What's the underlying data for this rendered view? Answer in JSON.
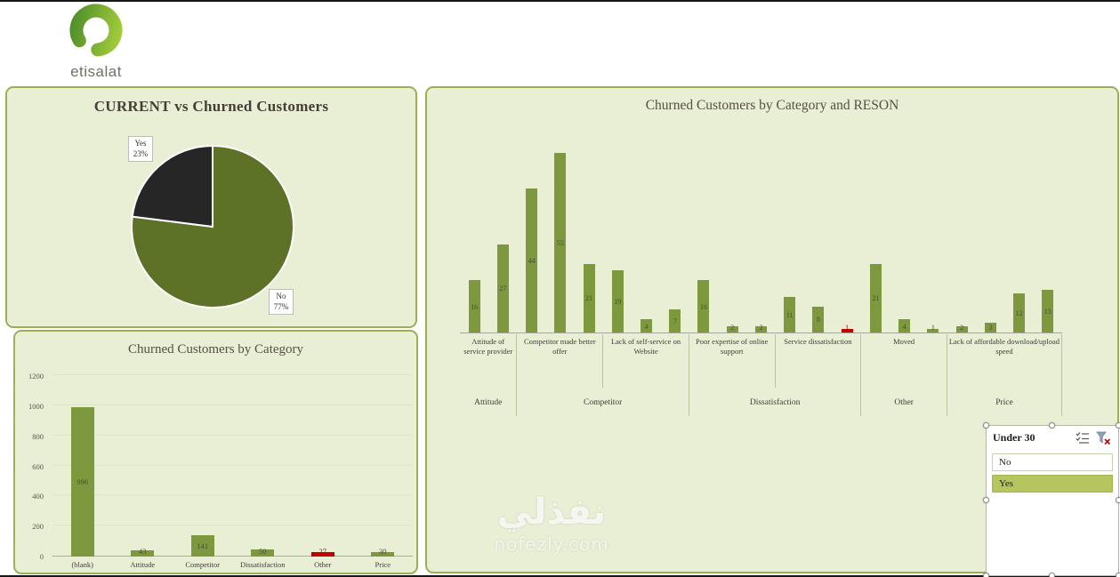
{
  "logo": {
    "brand": "etisalat"
  },
  "colors": {
    "panel_bg": "#e9efd5",
    "panel_border": "#9ab052",
    "bar_green": "#7e983d",
    "bar_red": "#c00000",
    "pie_no_green": "#5d7226",
    "pie_yes_dark": "#262626"
  },
  "chart_data": [
    {
      "id": "current_vs_churned",
      "type": "pie",
      "title": "CURRENT  vs Churned Customers",
      "legend": "none",
      "slices": [
        {
          "label": "No",
          "pct": 77,
          "pct_label": "77%",
          "color": "#5d7226"
        },
        {
          "label": "Yes",
          "pct": 23,
          "pct_label": "23%",
          "color": "#262626"
        }
      ]
    },
    {
      "id": "churned_by_category",
      "type": "bar",
      "title": "Churned Customers by Category",
      "categories": [
        "(blank)",
        "Attitude",
        "Competitor",
        "Dissatisfaction",
        "Other",
        "Price"
      ],
      "values": [
        996,
        43,
        141,
        50,
        27,
        30
      ],
      "red_indices": [
        4
      ],
      "ylim": [
        0,
        1200
      ],
      "yticks": [
        0,
        200,
        400,
        600,
        800,
        1000,
        1200
      ],
      "grid": "faint-horizontal",
      "legend": "none"
    },
    {
      "id": "churned_by_category_and_reason",
      "type": "bar",
      "title": "Churned Customers by Category and RESON",
      "ylim": [
        0,
        55
      ],
      "legend": "none",
      "groups": [
        {
          "category": "Attitude",
          "reason": "Attitude of service provider",
          "values": [
            16,
            27
          ]
        },
        {
          "category": "Competitor",
          "reason": "Competitor made better offer",
          "values": [
            44,
            55,
            21
          ]
        },
        {
          "category": "Competitor",
          "reason": "Lack of self-service on Website",
          "values": [
            19,
            4,
            7
          ]
        },
        {
          "category": "Dissatisfaction",
          "reason": "Poor expertise of online support",
          "values": [
            16,
            2,
            2
          ]
        },
        {
          "category": "Dissatisfaction",
          "reason": "Service dissatisfaction",
          "values": [
            11,
            8,
            1
          ],
          "red_indices": [
            2
          ]
        },
        {
          "category": "Other",
          "reason": "Moved",
          "values": [
            21,
            4,
            1
          ]
        },
        {
          "category": "Price",
          "reason": "Lack of affordable download/upload speed",
          "values": [
            2,
            3,
            12,
            13
          ]
        }
      ]
    }
  ],
  "slicer": {
    "title": "Under 30",
    "items": [
      {
        "label": "No",
        "selected": false
      },
      {
        "label": "Yes",
        "selected": true
      }
    ],
    "icons": [
      "multi-select-icon",
      "clear-filter-icon"
    ]
  },
  "watermark": {
    "arabic": "نفذلي",
    "site": "nofezly.com"
  }
}
